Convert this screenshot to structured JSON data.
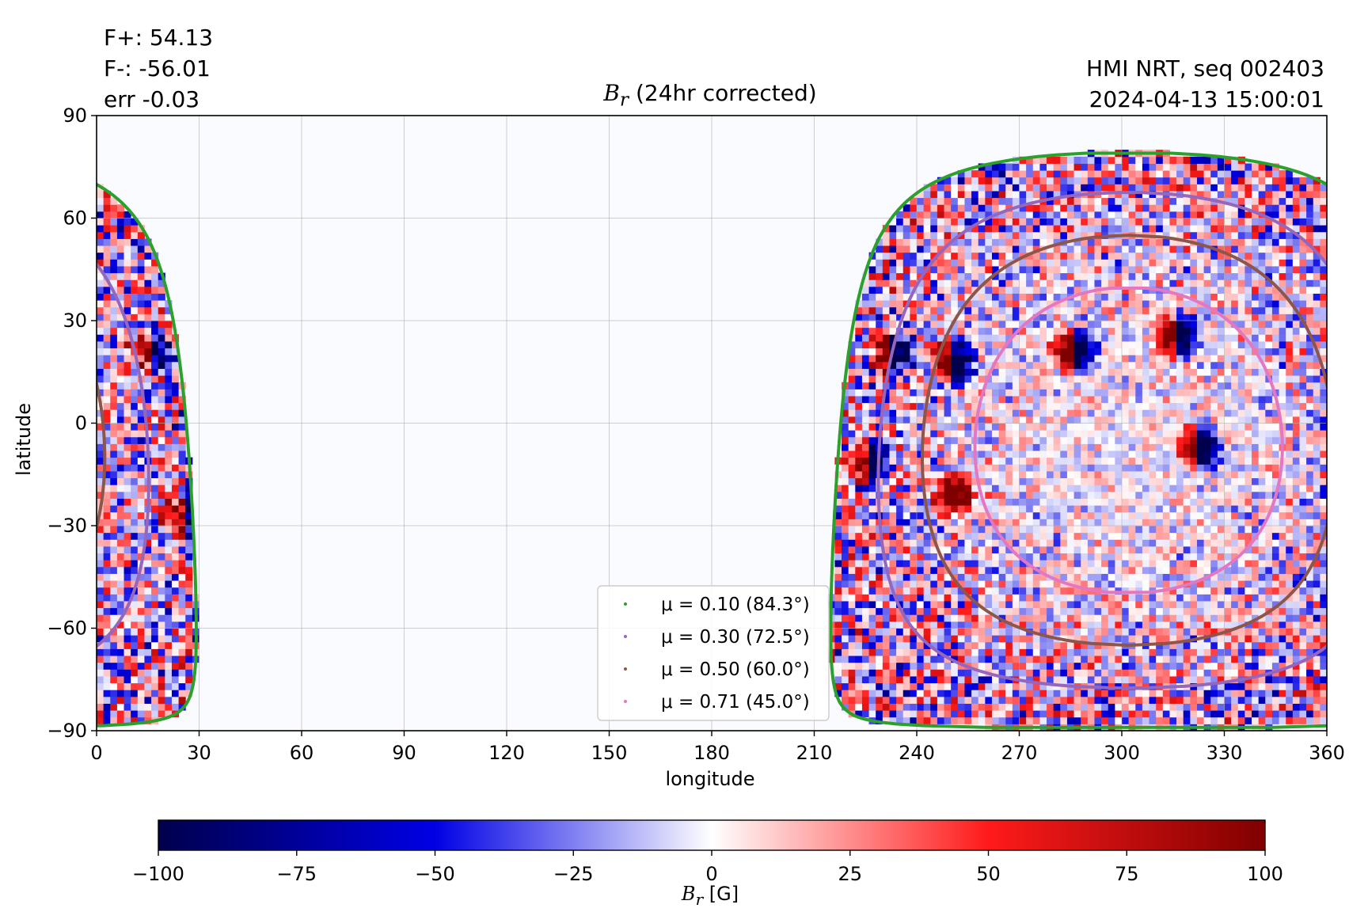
{
  "header": {
    "fplus": "F+: 54.13",
    "fminus": "F-: -56.01",
    "err": "err -0.03",
    "instrument": "HMI NRT, seq 002403",
    "datetime": "2024-04-13 15:00:01"
  },
  "chart_data": {
    "type": "heatmap",
    "title_main": "B",
    "title_sub": "r",
    "title_rest": " (24hr corrected)",
    "xlabel": "longitude",
    "ylabel": "latitude",
    "xlim": [
      0,
      360
    ],
    "ylim": [
      -90,
      90
    ],
    "xticks": [
      "0",
      "30",
      "60",
      "90",
      "120",
      "150",
      "180",
      "210",
      "240",
      "270",
      "300",
      "330",
      "360"
    ],
    "yticks": [
      "90",
      "60",
      "30",
      "0",
      "−30",
      "−60",
      "−90"
    ],
    "grid": true,
    "legend_position": "lower-center",
    "visible_disk_center": {
      "lon": 302,
      "lat": -5
    },
    "mu_contours": [
      {
        "label": "μ = 0.10 (84.3°)",
        "mu": 0.1,
        "angle": 84.3,
        "color": "#2ca02c"
      },
      {
        "label": "μ = 0.30 (72.5°)",
        "mu": 0.3,
        "angle": 72.5,
        "color": "#9467bd"
      },
      {
        "label": "μ = 0.50 (60.0°)",
        "mu": 0.5,
        "angle": 60.0,
        "color": "#8c564b"
      },
      {
        "label": "μ = 0.71 (45.0°)",
        "mu": 0.71,
        "angle": 45.0,
        "color": "#e377c2"
      }
    ],
    "colorbar": {
      "label_main": "B",
      "label_sub": "r",
      "label_rest": " [G]",
      "range": [
        -100,
        100
      ],
      "ticks": [
        "−100",
        "−75",
        "−50",
        "−25",
        "0",
        "25",
        "50",
        "75",
        "100"
      ],
      "colormap": "seismic"
    },
    "active_regions": [
      {
        "lon": 232,
        "lat": 20,
        "polarity": "bipolar"
      },
      {
        "lon": 250,
        "lat": 17,
        "polarity": "bipolar"
      },
      {
        "lon": 285,
        "lat": 20,
        "polarity": "bipolar"
      },
      {
        "lon": 315,
        "lat": 25,
        "polarity": "bipolar"
      },
      {
        "lon": 225,
        "lat": -12,
        "polarity": "bipolar"
      },
      {
        "lon": 322,
        "lat": -8,
        "polarity": "bipolar"
      },
      {
        "lon": 250,
        "lat": -22,
        "polarity": "positive"
      },
      {
        "lon": 15,
        "lat": 20,
        "polarity": "bipolar"
      },
      {
        "lon": 25,
        "lat": -28,
        "polarity": "bipolar"
      }
    ]
  }
}
